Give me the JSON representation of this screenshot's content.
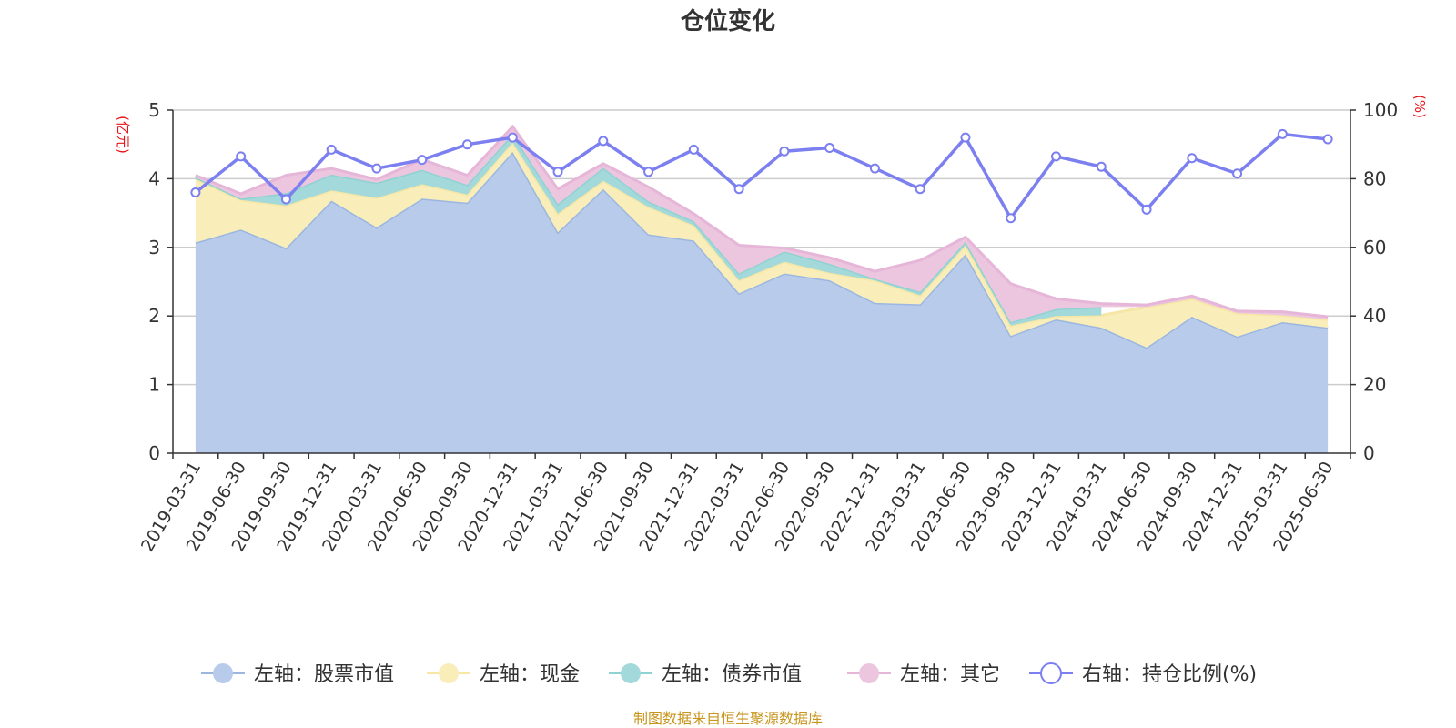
{
  "chart_data": {
    "type": "area",
    "title": "仓位变化",
    "left_axis": {
      "unit_label": "(亿元)",
      "min": 0,
      "max": 5,
      "ticks": [
        0,
        1,
        2,
        3,
        4,
        5
      ]
    },
    "right_axis": {
      "unit_label": "(%)",
      "min": 0,
      "max": 100,
      "ticks": [
        0,
        20,
        40,
        60,
        80,
        100
      ]
    },
    "grid": true,
    "legend_position": "bottom",
    "categories": [
      "2019-03-31",
      "2019-06-30",
      "2019-09-30",
      "2019-12-31",
      "2020-03-31",
      "2020-06-30",
      "2020-09-30",
      "2020-12-31",
      "2021-03-31",
      "2021-06-30",
      "2021-09-30",
      "2021-12-31",
      "2022-03-31",
      "2022-06-30",
      "2022-09-30",
      "2022-12-31",
      "2023-03-31",
      "2023-06-30",
      "2023-09-30",
      "2023-12-31",
      "2024-03-31",
      "2024-06-30",
      "2024-09-30",
      "2024-12-31",
      "2025-03-31",
      "2025-06-30"
    ],
    "series": [
      {
        "name": "左轴：股票市值",
        "axis": "left",
        "kind": "stacked-area",
        "color": "#9bb7e0",
        "fill": "#b8cbea",
        "values": [
          3.07,
          3.26,
          2.99,
          3.68,
          3.29,
          3.71,
          3.65,
          4.39,
          3.22,
          3.85,
          3.19,
          3.1,
          2.33,
          2.62,
          2.52,
          2.19,
          2.17,
          2.9,
          1.71,
          1.95,
          1.83,
          1.54,
          1.99,
          1.7,
          1.91,
          1.83
        ]
      },
      {
        "name": "左轴：现金",
        "axis": "left",
        "kind": "stacked-area",
        "color": "#f6e7a6",
        "fill": "#f9edba",
        "values": [
          0.93,
          0.43,
          0.62,
          0.15,
          0.43,
          0.21,
          0.12,
          0.14,
          0.27,
          0.12,
          0.4,
          0.22,
          0.19,
          0.17,
          0.11,
          0.33,
          0.13,
          0.13,
          0.15,
          0.05,
          0.18,
          0.59,
          0.26,
          0.34,
          0.1,
          0.12
        ]
      },
      {
        "name": "左轴：债券市值",
        "axis": "left",
        "kind": "stacked-area",
        "color": "#8fd2d2",
        "fill": "#a3d9da",
        "values": [
          0.02,
          0.02,
          0.18,
          0.23,
          0.22,
          0.21,
          0.14,
          0.12,
          0.14,
          0.19,
          0.08,
          0.06,
          0.1,
          0.15,
          0.13,
          0.02,
          0.05,
          0.05,
          0.05,
          0.1,
          0.12,
          0,
          0,
          0,
          0,
          0
        ]
      },
      {
        "name": "左轴：其它",
        "axis": "left",
        "kind": "stacked-area",
        "color": "#e6b6d8",
        "fill": "#ecc6df",
        "values": [
          0.03,
          0.07,
          0.26,
          0.09,
          0.05,
          0.15,
          0.14,
          0.11,
          0.22,
          0.06,
          0.21,
          0.11,
          0.41,
          0.05,
          0.09,
          0.11,
          0.46,
          0.07,
          0.56,
          0.15,
          0.05,
          0.03,
          0.04,
          0.03,
          0.05,
          0.04
        ]
      },
      {
        "name": "右轴：持仓比例(%)",
        "axis": "right",
        "kind": "line",
        "color": "#7b7ff0",
        "values": [
          76,
          86.5,
          74,
          88.5,
          83,
          85.5,
          90,
          92,
          82,
          91,
          82,
          88.5,
          77,
          88,
          89,
          83,
          77,
          92,
          68.5,
          86.5,
          83.5,
          71,
          86,
          81.5,
          93,
          91.5
        ]
      }
    ],
    "source_note": "制图数据来自恒生聚源数据库"
  }
}
